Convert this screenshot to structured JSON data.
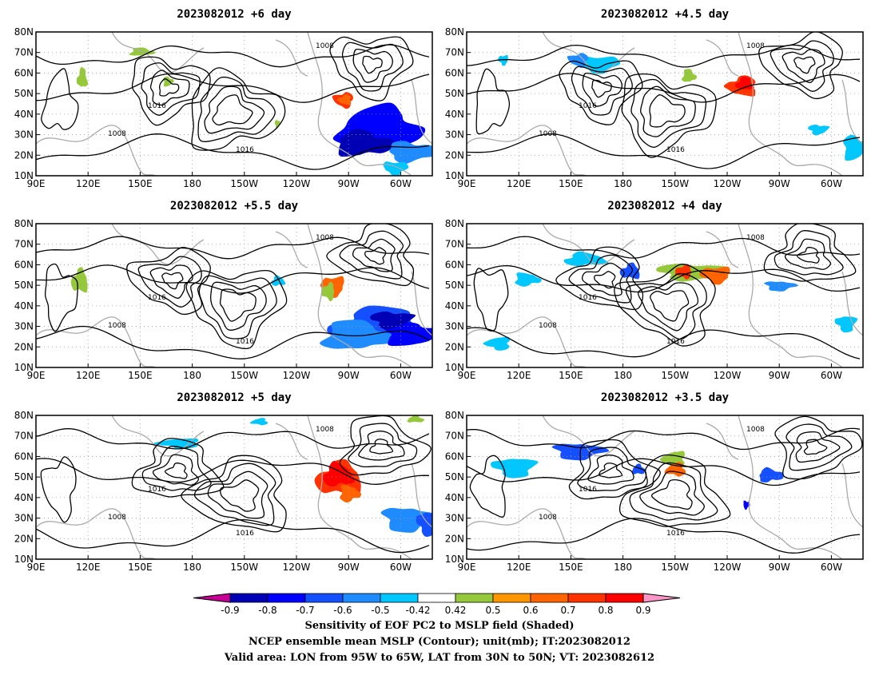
{
  "panels": [
    {
      "title": "2023082012 +6 day"
    },
    {
      "title": "2023082012 +4.5 day"
    },
    {
      "title": "2023082012 +5.5 day"
    },
    {
      "title": "2023082012 +4 day"
    },
    {
      "title": "2023082012 +5 day"
    },
    {
      "title": "2023082012 +3.5 day"
    }
  ],
  "lat_labels": [
    "80N",
    "70N",
    "60N",
    "50N",
    "40N",
    "30N",
    "20N",
    "10N"
  ],
  "lon_labels": [
    "90E",
    "120E",
    "150E",
    "180",
    "150W",
    "120W",
    "90W",
    "60W"
  ],
  "contour_labels": [
    "1008",
    "1016"
  ],
  "colorbar": {
    "colors": [
      "#0000b4",
      "#0000ff",
      "#1450ff",
      "#1e8cff",
      "#00c8ff",
      "#ffffff",
      "#96c83c",
      "#ff9600",
      "#ff6400",
      "#ff3200",
      "#ff0000"
    ],
    "under_color": "#c80096",
    "over_color": "#ff96c8",
    "labels": [
      "-0.9",
      "-0.8",
      "-0.7",
      "-0.6",
      "-0.5",
      "-0.42",
      "0.42",
      "0.5",
      "0.6",
      "0.7",
      "0.8",
      "0.9"
    ]
  },
  "caption": {
    "line1": "Sensitivity of EOF PC2 to MSLP field (Shaded)",
    "line2": "NCEP ensemble mean MSLP (Contour); unit(mb); IT:2023082012",
    "line3": "Valid area: LON from 95W to 65W, LAT from 30N to 50N; VT: 2023082612"
  }
}
